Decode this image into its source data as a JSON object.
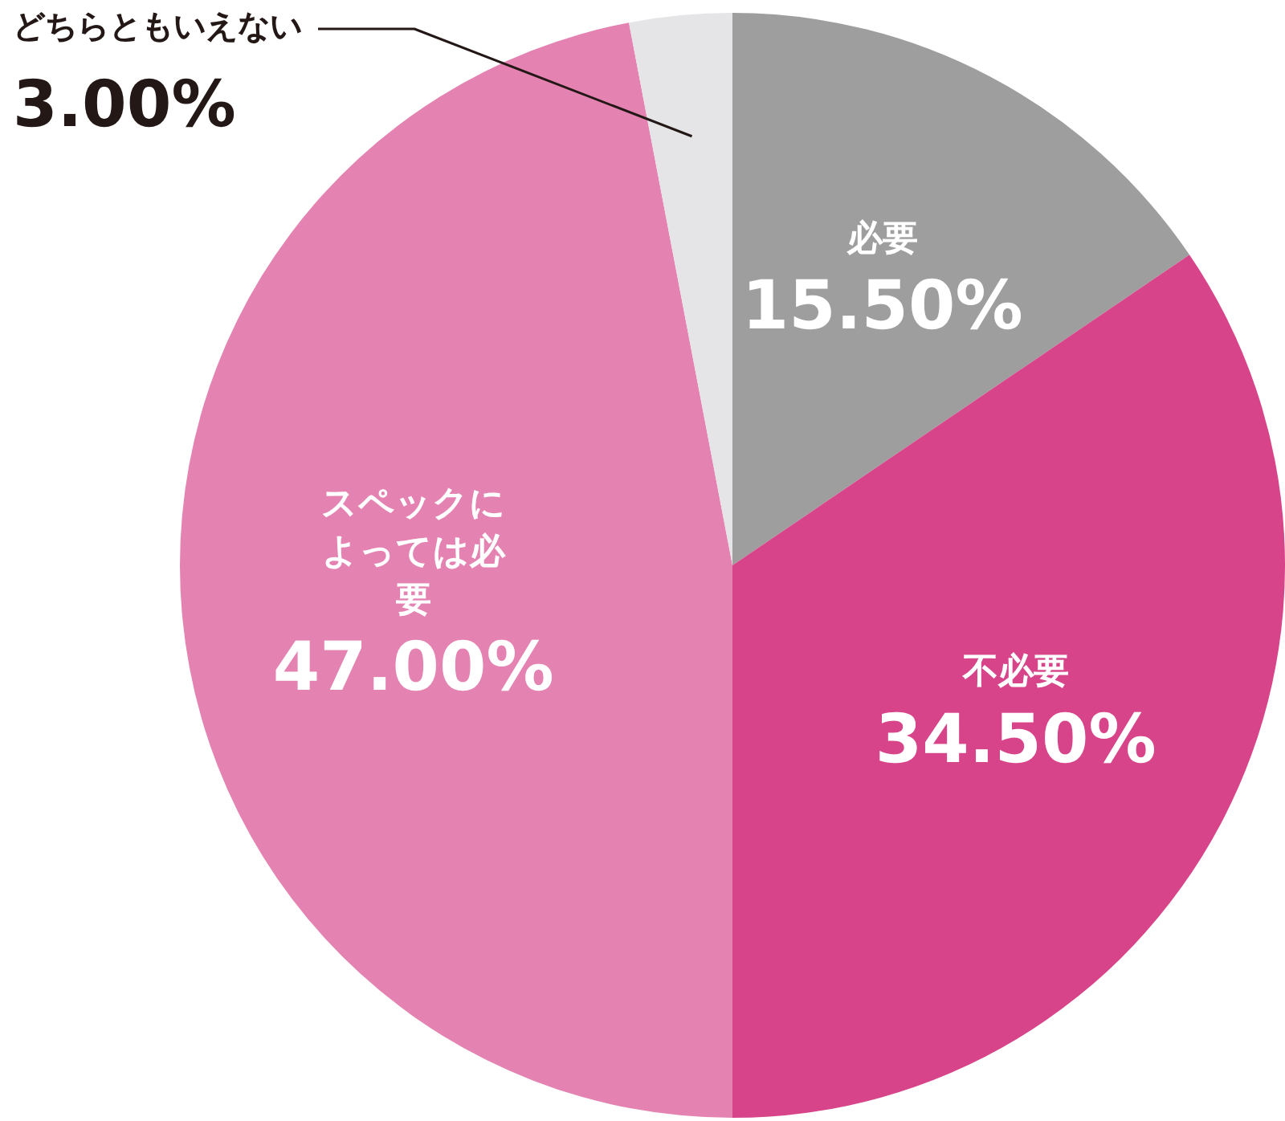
{
  "chart_data": {
    "type": "pie",
    "categories": [
      "必要",
      "不必要",
      "スペックによっては必要",
      "どちらともいえない"
    ],
    "values": [
      15.5,
      34.5,
      47,
      3
    ],
    "value_labels": [
      "15.50%",
      "34.50%",
      "47.00%",
      "3.00%"
    ],
    "colors": [
      "#9e9e9f",
      "#d74489",
      "#e483b1",
      "#e5e5e7"
    ],
    "legend": false
  }
}
